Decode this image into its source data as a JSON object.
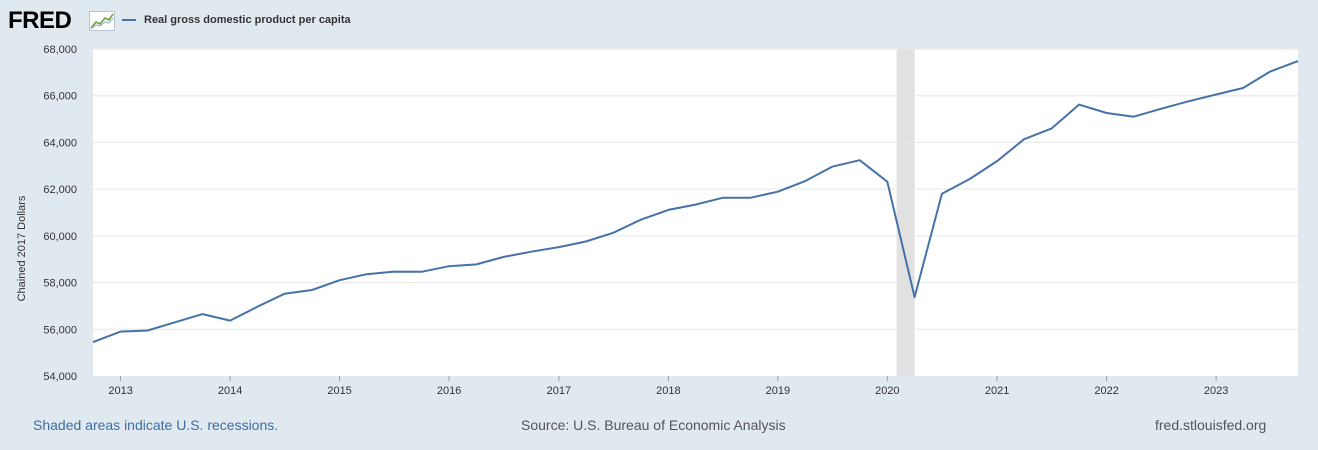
{
  "brand": {
    "logo_text": "FRED",
    "logo_mark_icon": "line-chart-icon"
  },
  "legend": {
    "series_name": "Real gross domestic product per capita",
    "series_color": "#4572a7"
  },
  "footer": {
    "recession_note": "Shaded areas indicate U.S. recessions.",
    "source": "Source: U.S. Bureau of Economic Analysis",
    "site": "fred.stlouisfed.org"
  },
  "colors": {
    "background": "#e1e9f0",
    "plot_background": "#ffffff",
    "gridline": "#e6e6e6",
    "recession_shade": "#e1e1e1",
    "series": "#4572a7",
    "link": "#3d6ea1"
  },
  "chart_data": {
    "type": "line",
    "title": "",
    "xlabel": "",
    "ylabel": "Chained 2017 Dollars",
    "xlim": [
      "2012-10-01",
      "2023-10-01"
    ],
    "ylim": [
      54000,
      68000
    ],
    "yticks": [
      54000,
      56000,
      58000,
      60000,
      62000,
      64000,
      66000,
      68000
    ],
    "ytick_labels": [
      "54,000",
      "56,000",
      "58,000",
      "60,000",
      "62,000",
      "64,000",
      "66,000",
      "68,000"
    ],
    "xticks": [
      "2013-01-01",
      "2014-01-01",
      "2015-01-01",
      "2016-01-01",
      "2017-01-01",
      "2018-01-01",
      "2019-01-01",
      "2020-01-01",
      "2021-01-01",
      "2022-01-01",
      "2023-01-01"
    ],
    "xtick_labels": [
      "2013",
      "2014",
      "2015",
      "2016",
      "2017",
      "2018",
      "2019",
      "2020",
      "2021",
      "2022",
      "2023"
    ],
    "grid": true,
    "legend_position": "top-left",
    "recessions": [
      {
        "start": "2020-02-01",
        "end": "2020-04-01"
      }
    ],
    "series": [
      {
        "name": "Real gross domestic product per capita",
        "x": [
          "2012-10-01",
          "2013-01-01",
          "2013-04-01",
          "2013-07-01",
          "2013-10-01",
          "2014-01-01",
          "2014-04-01",
          "2014-07-01",
          "2014-10-01",
          "2015-01-01",
          "2015-04-01",
          "2015-07-01",
          "2015-10-01",
          "2016-01-01",
          "2016-04-01",
          "2016-07-01",
          "2016-10-01",
          "2017-01-01",
          "2017-04-01",
          "2017-07-01",
          "2017-10-01",
          "2018-01-01",
          "2018-04-01",
          "2018-07-01",
          "2018-10-01",
          "2019-01-01",
          "2019-04-01",
          "2019-07-01",
          "2019-10-01",
          "2020-01-01",
          "2020-04-01",
          "2020-07-01",
          "2020-10-01",
          "2021-01-01",
          "2021-04-01",
          "2021-07-01",
          "2021-10-01",
          "2022-01-01",
          "2022-04-01",
          "2022-07-01",
          "2022-10-01",
          "2023-01-01",
          "2023-04-01",
          "2023-07-01",
          "2023-10-01"
        ],
        "values": [
          55450,
          55900,
          55950,
          56300,
          56650,
          56370,
          56960,
          57520,
          57680,
          58100,
          58360,
          58470,
          58460,
          58700,
          58780,
          59100,
          59320,
          59520,
          59760,
          60130,
          60690,
          61110,
          61340,
          61630,
          61630,
          61890,
          62340,
          62960,
          63240,
          62320,
          57380,
          61800,
          62430,
          63200,
          64140,
          64590,
          65620,
          65260,
          65100,
          65440,
          65760,
          66050,
          66330,
          67040,
          67480
        ]
      }
    ]
  }
}
